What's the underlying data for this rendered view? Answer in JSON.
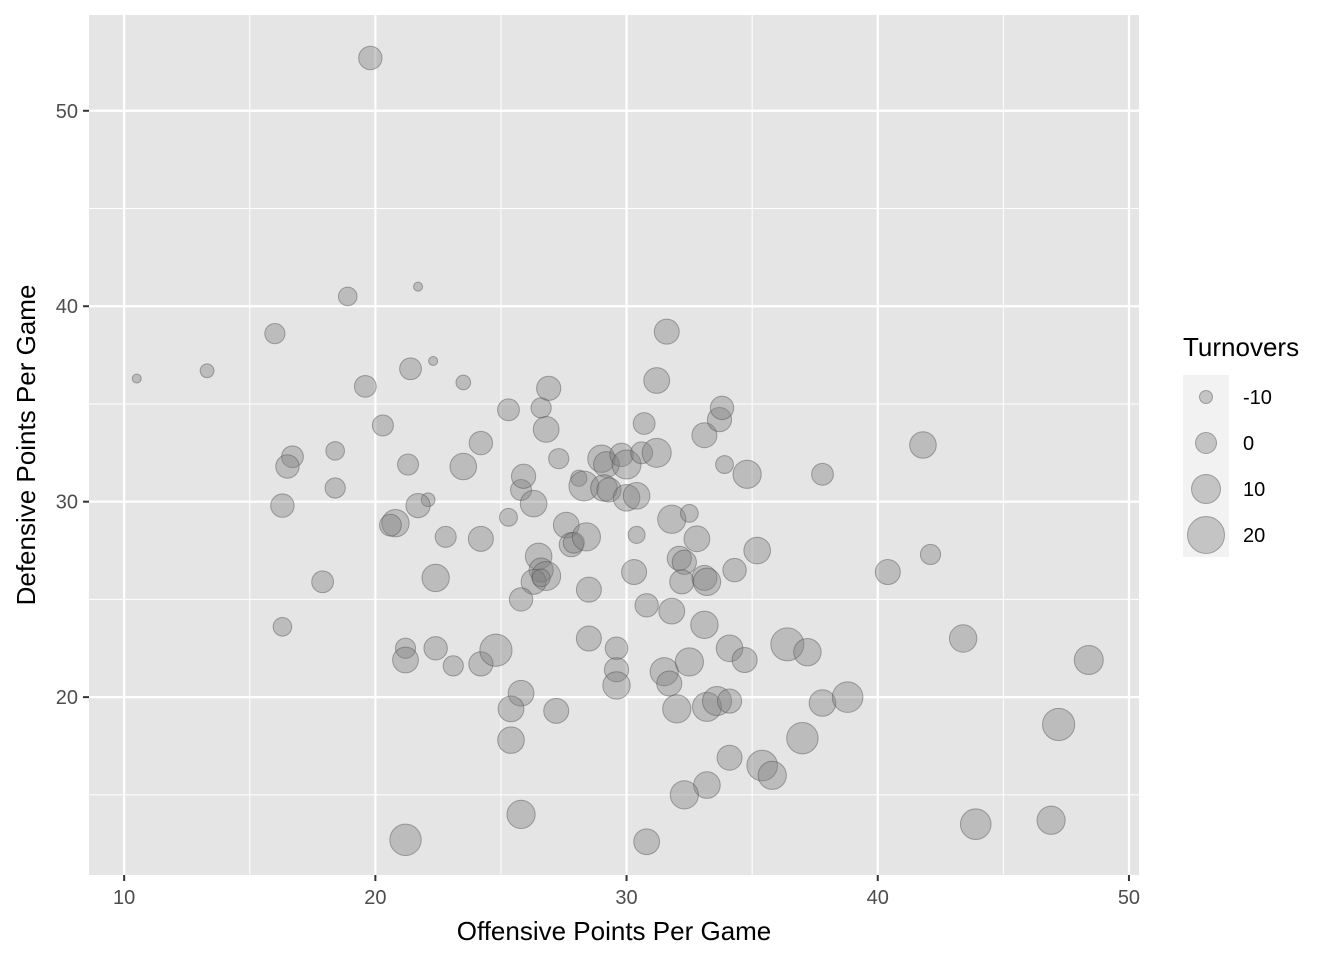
{
  "chart_data": {
    "type": "scatter",
    "title": "",
    "xlabel": "Offensive Points Per Game",
    "ylabel": "Defensive Points Per Game",
    "xlim": [
      8.6,
      50.4
    ],
    "ylim": [
      10.9,
      54.9
    ],
    "x_ticks": [
      10,
      20,
      30,
      40,
      50
    ],
    "y_ticks": [
      20,
      30,
      40,
      50
    ],
    "x_tick_labels": [
      "10",
      "20",
      "30",
      "40",
      "50"
    ],
    "y_tick_labels": [
      "20",
      "30",
      "40",
      "50"
    ],
    "grid": true,
    "size_variable": "Turnovers",
    "legend": {
      "title": "Turnovers",
      "position": "right",
      "entries": [
        {
          "label": "-10",
          "value": -10
        },
        {
          "label": "0",
          "value": 0
        },
        {
          "label": "10",
          "value": 10
        },
        {
          "label": "20",
          "value": 20
        }
      ]
    },
    "colors": {
      "panel": "#e5e5e5",
      "grid": "#ffffff",
      "point_fill": "#7f7f7f",
      "point_stroke": "#4d4d4d"
    },
    "points": [
      {
        "x": 19.8,
        "y": 52.7,
        "t": 3
      },
      {
        "x": 18.9,
        "y": 40.5,
        "t": -3
      },
      {
        "x": 21.7,
        "y": 41.0,
        "t": -15
      },
      {
        "x": 10.5,
        "y": 36.3,
        "t": -15
      },
      {
        "x": 13.3,
        "y": 36.7,
        "t": -9
      },
      {
        "x": 16.0,
        "y": 38.6,
        "t": -1
      },
      {
        "x": 22.3,
        "y": 37.2,
        "t": -15
      },
      {
        "x": 21.4,
        "y": 36.8,
        "t": 1
      },
      {
        "x": 19.6,
        "y": 35.9,
        "t": 1
      },
      {
        "x": 23.5,
        "y": 36.1,
        "t": -8
      },
      {
        "x": 20.3,
        "y": 33.9,
        "t": 0
      },
      {
        "x": 18.4,
        "y": 32.6,
        "t": -3
      },
      {
        "x": 16.7,
        "y": 32.3,
        "t": 1
      },
      {
        "x": 16.5,
        "y": 31.8,
        "t": 3
      },
      {
        "x": 21.3,
        "y": 31.9,
        "t": 0
      },
      {
        "x": 18.4,
        "y": 30.7,
        "t": -1
      },
      {
        "x": 16.3,
        "y": 29.8,
        "t": 3
      },
      {
        "x": 22.1,
        "y": 30.1,
        "t": -9
      },
      {
        "x": 21.7,
        "y": 29.8,
        "t": 4
      },
      {
        "x": 20.8,
        "y": 28.9,
        "t": 8
      },
      {
        "x": 20.6,
        "y": 28.8,
        "t": 1
      },
      {
        "x": 22.8,
        "y": 28.2,
        "t": 0
      },
      {
        "x": 24.2,
        "y": 28.1,
        "t": 5
      },
      {
        "x": 17.9,
        "y": 25.9,
        "t": 1
      },
      {
        "x": 22.4,
        "y": 26.1,
        "t": 8
      },
      {
        "x": 16.3,
        "y": 23.6,
        "t": -3
      },
      {
        "x": 21.2,
        "y": 22.5,
        "t": -1
      },
      {
        "x": 22.4,
        "y": 22.5,
        "t": 3
      },
      {
        "x": 21.2,
        "y": 21.9,
        "t": 6
      },
      {
        "x": 23.1,
        "y": 21.6,
        "t": -1
      },
      {
        "x": 24.2,
        "y": 21.7,
        "t": 4
      },
      {
        "x": 24.8,
        "y": 22.4,
        "t": 14
      },
      {
        "x": 23.5,
        "y": 31.8,
        "t": 7
      },
      {
        "x": 24.2,
        "y": 33.0,
        "t": 3
      },
      {
        "x": 25.3,
        "y": 34.7,
        "t": 1
      },
      {
        "x": 25.3,
        "y": 29.2,
        "t": -4
      },
      {
        "x": 25.8,
        "y": 30.6,
        "t": 0
      },
      {
        "x": 25.9,
        "y": 31.3,
        "t": 4
      },
      {
        "x": 26.3,
        "y": 29.9,
        "t": 7
      },
      {
        "x": 26.6,
        "y": 34.8,
        "t": -1
      },
      {
        "x": 26.9,
        "y": 35.8,
        "t": 4
      },
      {
        "x": 26.8,
        "y": 33.7,
        "t": 6
      },
      {
        "x": 27.3,
        "y": 32.2,
        "t": -1
      },
      {
        "x": 26.5,
        "y": 27.2,
        "t": 7
      },
      {
        "x": 26.6,
        "y": 26.5,
        "t": 4
      },
      {
        "x": 26.8,
        "y": 26.2,
        "t": 10
      },
      {
        "x": 26.3,
        "y": 25.9,
        "t": 5
      },
      {
        "x": 26.6,
        "y": 26.1,
        "t": -4
      },
      {
        "x": 25.8,
        "y": 25.0,
        "t": 3
      },
      {
        "x": 27.6,
        "y": 28.8,
        "t": 6
      },
      {
        "x": 27.8,
        "y": 27.8,
        "t": 4
      },
      {
        "x": 27.9,
        "y": 27.9,
        "t": 0
      },
      {
        "x": 28.4,
        "y": 28.2,
        "t": 9
      },
      {
        "x": 28.1,
        "y": 31.2,
        "t": -6
      },
      {
        "x": 28.3,
        "y": 30.8,
        "t": 11
      },
      {
        "x": 28.5,
        "y": 25.5,
        "t": 5
      },
      {
        "x": 28.5,
        "y": 23.0,
        "t": 5
      },
      {
        "x": 25.8,
        "y": 20.2,
        "t": 6
      },
      {
        "x": 25.4,
        "y": 19.4,
        "t": 6
      },
      {
        "x": 25.4,
        "y": 17.8,
        "t": 7
      },
      {
        "x": 27.2,
        "y": 19.3,
        "t": 5
      },
      {
        "x": 25.8,
        "y": 14.0,
        "t": 9
      },
      {
        "x": 21.2,
        "y": 12.7,
        "t": 13
      },
      {
        "x": 29.0,
        "y": 32.2,
        "t": 8
      },
      {
        "x": 29.2,
        "y": 31.9,
        "t": 6
      },
      {
        "x": 29.8,
        "y": 32.4,
        "t": 3
      },
      {
        "x": 30.0,
        "y": 31.9,
        "t": 10
      },
      {
        "x": 29.1,
        "y": 30.7,
        "t": 7
      },
      {
        "x": 29.3,
        "y": 30.6,
        "t": 4
      },
      {
        "x": 30.0,
        "y": 30.2,
        "t": 7
      },
      {
        "x": 30.4,
        "y": 30.3,
        "t": 7
      },
      {
        "x": 30.6,
        "y": 32.5,
        "t": 1
      },
      {
        "x": 30.7,
        "y": 34.0,
        "t": 1
      },
      {
        "x": 31.2,
        "y": 32.5,
        "t": 10
      },
      {
        "x": 31.2,
        "y": 36.2,
        "t": 6
      },
      {
        "x": 31.6,
        "y": 38.7,
        "t": 5
      },
      {
        "x": 30.4,
        "y": 28.3,
        "t": -5
      },
      {
        "x": 30.3,
        "y": 26.4,
        "t": 5
      },
      {
        "x": 30.8,
        "y": 24.7,
        "t": 3
      },
      {
        "x": 29.6,
        "y": 22.5,
        "t": 2
      },
      {
        "x": 29.6,
        "y": 21.4,
        "t": 4
      },
      {
        "x": 29.6,
        "y": 20.6,
        "t": 8
      },
      {
        "x": 31.8,
        "y": 29.1,
        "t": 9
      },
      {
        "x": 31.8,
        "y": 24.4,
        "t": 6
      },
      {
        "x": 32.1,
        "y": 27.1,
        "t": 4
      },
      {
        "x": 32.3,
        "y": 26.9,
        "t": 4
      },
      {
        "x": 32.5,
        "y": 29.4,
        "t": -4
      },
      {
        "x": 32.8,
        "y": 28.1,
        "t": 6
      },
      {
        "x": 32.2,
        "y": 25.9,
        "t": 4
      },
      {
        "x": 33.1,
        "y": 26.1,
        "t": 5
      },
      {
        "x": 33.2,
        "y": 25.9,
        "t": 8
      },
      {
        "x": 33.1,
        "y": 23.7,
        "t": 8
      },
      {
        "x": 31.5,
        "y": 21.3,
        "t": 9
      },
      {
        "x": 31.7,
        "y": 20.7,
        "t": 5
      },
      {
        "x": 32.5,
        "y": 21.8,
        "t": 9
      },
      {
        "x": 32.0,
        "y": 19.4,
        "t": 9
      },
      {
        "x": 33.2,
        "y": 19.5,
        "t": 10
      },
      {
        "x": 33.6,
        "y": 19.8,
        "t": 10
      },
      {
        "x": 34.1,
        "y": 19.8,
        "t": 4
      },
      {
        "x": 34.1,
        "y": 22.5,
        "t": 7
      },
      {
        "x": 34.7,
        "y": 21.9,
        "t": 5
      },
      {
        "x": 33.1,
        "y": 33.4,
        "t": 5
      },
      {
        "x": 33.7,
        "y": 34.2,
        "t": 4
      },
      {
        "x": 33.8,
        "y": 34.8,
        "t": 3
      },
      {
        "x": 33.9,
        "y": 31.9,
        "t": -4
      },
      {
        "x": 34.8,
        "y": 31.4,
        "t": 9
      },
      {
        "x": 34.3,
        "y": 26.5,
        "t": 3
      },
      {
        "x": 35.2,
        "y": 27.5,
        "t": 7
      },
      {
        "x": 34.1,
        "y": 16.9,
        "t": 5
      },
      {
        "x": 33.2,
        "y": 15.5,
        "t": 7
      },
      {
        "x": 32.3,
        "y": 15.0,
        "t": 9
      },
      {
        "x": 30.8,
        "y": 12.6,
        "t": 6
      },
      {
        "x": 35.4,
        "y": 16.5,
        "t": 12
      },
      {
        "x": 35.8,
        "y": 16.0,
        "t": 9
      },
      {
        "x": 36.4,
        "y": 22.7,
        "t": 15
      },
      {
        "x": 37.2,
        "y": 22.3,
        "t": 8
      },
      {
        "x": 37.8,
        "y": 31.4,
        "t": 1
      },
      {
        "x": 37.8,
        "y": 19.7,
        "t": 7
      },
      {
        "x": 38.8,
        "y": 20.0,
        "t": 12
      },
      {
        "x": 37.0,
        "y": 17.9,
        "t": 13
      },
      {
        "x": 40.4,
        "y": 26.4,
        "t": 5
      },
      {
        "x": 41.8,
        "y": 32.9,
        "t": 7
      },
      {
        "x": 42.1,
        "y": 27.3,
        "t": -1
      },
      {
        "x": 43.4,
        "y": 23.0,
        "t": 8
      },
      {
        "x": 43.9,
        "y": 13.5,
        "t": 12
      },
      {
        "x": 46.9,
        "y": 13.7,
        "t": 9
      },
      {
        "x": 47.2,
        "y": 18.6,
        "t": 14
      },
      {
        "x": 48.4,
        "y": 21.9,
        "t": 10
      }
    ]
  }
}
